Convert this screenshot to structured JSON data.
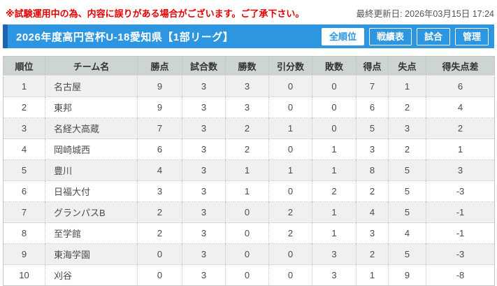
{
  "topbar": {
    "notice": "※試験運用中の為、内容に誤りがある場合がございます。ご了承下さい。",
    "last_updated": "最終更新日: 2026年03月15日 17:24"
  },
  "header": {
    "title": "2026年度高円宮杯U-18愛知県【1部リーグ】",
    "buttons": [
      {
        "label": "全順位",
        "name": "tab-all-rankings",
        "active": true
      },
      {
        "label": "戦績表",
        "name": "tab-results-grid",
        "active": false
      },
      {
        "label": "試合",
        "name": "tab-matches",
        "active": false
      },
      {
        "label": "管理",
        "name": "tab-admin",
        "active": false
      }
    ]
  },
  "colors": {
    "accent_blue": "#2d96e0",
    "accent_dark_blue": "#2263b2",
    "notice_red": "#e50000",
    "table_header_bg": "#ccd5cf",
    "row_alt_bg": "#f0f0f0"
  },
  "table": {
    "columns": [
      {
        "key": "rank",
        "label": "順位"
      },
      {
        "key": "team",
        "label": "チーム名"
      },
      {
        "key": "points",
        "label": "勝点"
      },
      {
        "key": "played",
        "label": "試合数"
      },
      {
        "key": "wins",
        "label": "勝数"
      },
      {
        "key": "draws",
        "label": "引分数"
      },
      {
        "key": "losses",
        "label": "敗数"
      },
      {
        "key": "goals-for",
        "label": "得点"
      },
      {
        "key": "goals-against",
        "label": "失点"
      },
      {
        "key": "goal-diff",
        "label": "得失点差"
      }
    ],
    "rows": [
      [
        1,
        "名古屋",
        9,
        3,
        3,
        0,
        0,
        7,
        1,
        6
      ],
      [
        2,
        "東邦",
        9,
        3,
        3,
        0,
        0,
        6,
        2,
        4
      ],
      [
        3,
        "名経大高蔵",
        7,
        3,
        2,
        1,
        0,
        5,
        3,
        2
      ],
      [
        4,
        "岡崎城西",
        6,
        3,
        2,
        0,
        1,
        3,
        2,
        1
      ],
      [
        5,
        "豊川",
        4,
        3,
        1,
        1,
        1,
        8,
        5,
        3
      ],
      [
        6,
        "日福大付",
        3,
        3,
        1,
        0,
        2,
        2,
        5,
        -3
      ],
      [
        7,
        "グランパスB",
        2,
        3,
        0,
        2,
        1,
        4,
        5,
        -1
      ],
      [
        8,
        "至学館",
        2,
        3,
        0,
        2,
        1,
        3,
        4,
        -1
      ],
      [
        9,
        "東海学園",
        0,
        3,
        0,
        0,
        3,
        2,
        5,
        -3
      ],
      [
        10,
        "刈谷",
        0,
        3,
        0,
        0,
        3,
        1,
        9,
        -8
      ]
    ]
  }
}
